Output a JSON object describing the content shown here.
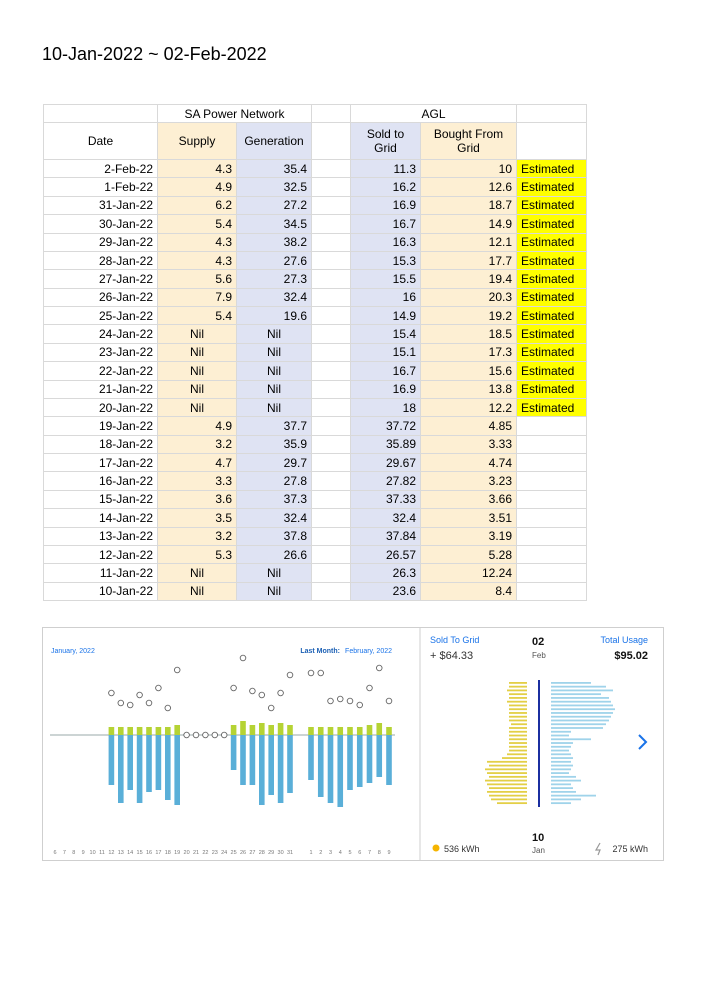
{
  "title": "10-Jan-2022 ~ 02-Feb-2022",
  "table": {
    "groups": [
      "SA Power Network",
      "AGL"
    ],
    "headers": [
      "Date",
      "Supply",
      "Generation",
      "Sold to Grid",
      "Bought From Grid"
    ],
    "rows": [
      {
        "date": "2-Feb-22",
        "supply": 4.3,
        "generation": 35.4,
        "sold": 11.3,
        "bought": 10,
        "note": "Estimated"
      },
      {
        "date": "1-Feb-22",
        "supply": 4.9,
        "generation": 32.5,
        "sold": 16.2,
        "bought": 12.6,
        "note": "Estimated"
      },
      {
        "date": "31-Jan-22",
        "supply": 6.2,
        "generation": 27.2,
        "sold": 16.9,
        "bought": 18.7,
        "note": "Estimated"
      },
      {
        "date": "30-Jan-22",
        "supply": 5.4,
        "generation": 34.5,
        "sold": 16.7,
        "bought": 14.9,
        "note": "Estimated"
      },
      {
        "date": "29-Jan-22",
        "supply": 4.3,
        "generation": 38.2,
        "sold": 16.3,
        "bought": 12.1,
        "note": "Estimated"
      },
      {
        "date": "28-Jan-22",
        "supply": 4.3,
        "generation": 27.6,
        "sold": 15.3,
        "bought": 17.7,
        "note": "Estimated"
      },
      {
        "date": "27-Jan-22",
        "supply": 5.6,
        "generation": 27.3,
        "sold": 15.5,
        "bought": 19.4,
        "note": "Estimated"
      },
      {
        "date": "26-Jan-22",
        "supply": 7.9,
        "generation": 32.4,
        "sold": 16,
        "bought": 20.3,
        "note": "Estimated"
      },
      {
        "date": "25-Jan-22",
        "supply": 5.4,
        "generation": 19.6,
        "sold": 14.9,
        "bought": 19.2,
        "note": "Estimated"
      },
      {
        "date": "24-Jan-22",
        "supply": "Nil",
        "generation": "Nil",
        "sold": 15.4,
        "bought": 18.5,
        "note": "Estimated"
      },
      {
        "date": "23-Jan-22",
        "supply": "Nil",
        "generation": "Nil",
        "sold": 15.1,
        "bought": 17.3,
        "note": "Estimated"
      },
      {
        "date": "22-Jan-22",
        "supply": "Nil",
        "generation": "Nil",
        "sold": 16.7,
        "bought": 15.6,
        "note": "Estimated"
      },
      {
        "date": "21-Jan-22",
        "supply": "Nil",
        "generation": "Nil",
        "sold": 16.9,
        "bought": 13.8,
        "note": "Estimated"
      },
      {
        "date": "20-Jan-22",
        "supply": "Nil",
        "generation": "Nil",
        "sold": 18,
        "bought": 12.2,
        "note": "Estimated"
      },
      {
        "date": "19-Jan-22",
        "supply": 4.9,
        "generation": 37.7,
        "sold": 37.72,
        "bought": 4.85
      },
      {
        "date": "18-Jan-22",
        "supply": 3.2,
        "generation": 35.9,
        "sold": 35.89,
        "bought": 3.33
      },
      {
        "date": "17-Jan-22",
        "supply": 4.7,
        "generation": 29.7,
        "sold": 29.67,
        "bought": 4.74
      },
      {
        "date": "16-Jan-22",
        "supply": 3.3,
        "generation": 27.8,
        "sold": 27.82,
        "bought": 3.23
      },
      {
        "date": "15-Jan-22",
        "supply": 3.6,
        "generation": 37.3,
        "sold": 37.33,
        "bought": 3.66
      },
      {
        "date": "14-Jan-22",
        "supply": 3.5,
        "generation": 32.4,
        "sold": 32.4,
        "bought": 3.51
      },
      {
        "date": "13-Jan-22",
        "supply": 3.2,
        "generation": 37.8,
        "sold": 37.84,
        "bought": 3.19
      },
      {
        "date": "12-Jan-22",
        "supply": 5.3,
        "generation": 26.6,
        "sold": 26.57,
        "bought": 5.28
      },
      {
        "date": "11-Jan-22",
        "supply": "Nil",
        "generation": "Nil",
        "sold": 26.3,
        "bought": 12.24
      },
      {
        "date": "10-Jan-22",
        "supply": "Nil",
        "generation": "Nil",
        "sold": 23.6,
        "bought": 8.4
      }
    ]
  },
  "screenshot": {
    "left": {
      "period": "January, 2022",
      "last_month_label": "Last Month:",
      "last_month": "February, 2022",
      "days": [
        "6",
        "7",
        "8",
        "9",
        "10",
        "11",
        "12",
        "13",
        "14",
        "15",
        "16",
        "17",
        "18",
        "19",
        "20",
        "21",
        "22",
        "23",
        "24",
        "25",
        "26",
        "27",
        "28",
        "29",
        "30",
        "31",
        "1",
        "2",
        "3",
        "4",
        "5",
        "6",
        "7",
        "8",
        "9"
      ],
      "usage": [
        null,
        null,
        null,
        null,
        null,
        null,
        50,
        68,
        55,
        68,
        57,
        55,
        65,
        70,
        null,
        null,
        null,
        null,
        null,
        35,
        50,
        50,
        70,
        60,
        68,
        58,
        45,
        62,
        68,
        72,
        55,
        52,
        48,
        42,
        50
      ],
      "solar": [
        null,
        null,
        null,
        null,
        null,
        null,
        8,
        8,
        8,
        8,
        8,
        8,
        8,
        10,
        null,
        null,
        null,
        null,
        null,
        10,
        14,
        10,
        12,
        10,
        12,
        10,
        8,
        8,
        8,
        8,
        8,
        8,
        10,
        12,
        8
      ],
      "export": [
        null,
        null,
        null,
        null,
        null,
        null,
        30,
        20,
        18,
        28,
        20,
        35,
        15,
        53,
        0,
        0,
        0,
        0,
        0,
        35,
        65,
        32,
        28,
        15,
        30,
        48,
        50,
        50,
        22,
        24,
        22,
        18,
        35,
        55,
        22
      ]
    },
    "right": {
      "sold_label": "Sold To Grid",
      "sold_amount": "+ $64.33",
      "top_day": "02",
      "top_month": "Feb",
      "usage_label": "Total Usage",
      "usage_amount": "$95.02",
      "bottom_day": "10",
      "bottom_month": "Jan",
      "solar_total": "536 kWh",
      "usage_total": "275 kWh",
      "solar_bars": [
        18,
        18,
        20,
        18,
        18,
        20,
        18,
        18,
        18,
        18,
        18,
        16,
        18,
        18,
        18,
        18,
        18,
        18,
        18,
        20,
        25,
        40,
        38,
        42,
        40,
        38,
        42,
        40,
        38,
        40,
        38,
        36,
        30
      ],
      "usage_bars": [
        40,
        55,
        62,
        50,
        58,
        60,
        62,
        64,
        62,
        60,
        58,
        55,
        52,
        20,
        18,
        40,
        22,
        20,
        18,
        20,
        22,
        20,
        22,
        20,
        18,
        25,
        30,
        20,
        22,
        25,
        45,
        30,
        20
      ]
    }
  }
}
